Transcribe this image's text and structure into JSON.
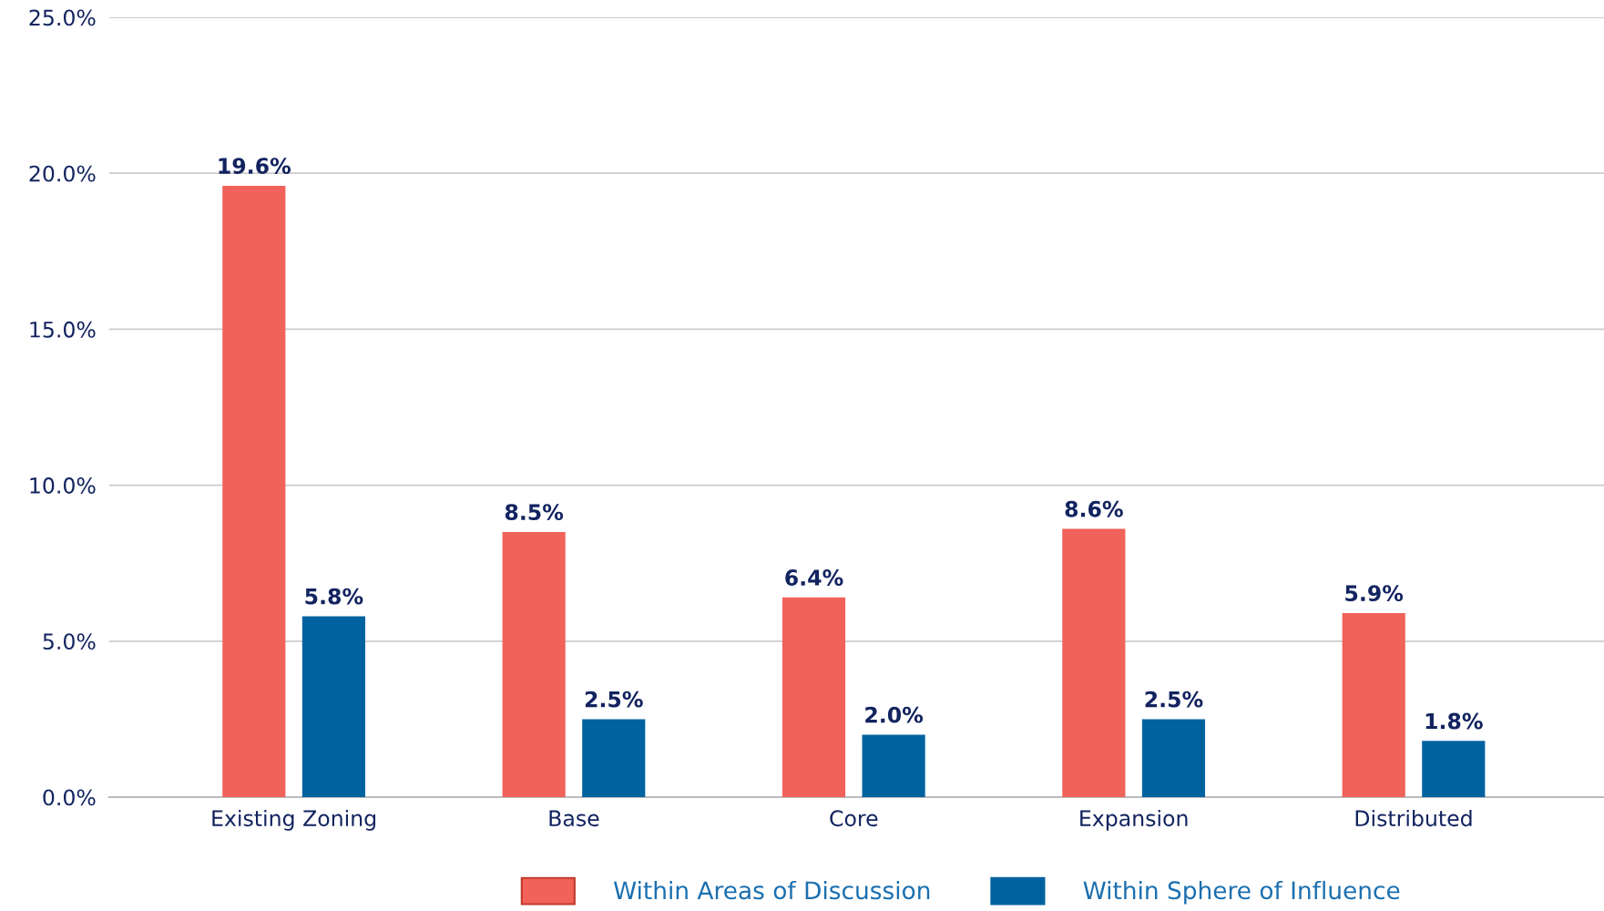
{
  "chart_data": {
    "type": "bar",
    "categories": [
      "Existing Zoning",
      "Base",
      "Core",
      "Expansion",
      "Distributed"
    ],
    "series": [
      {
        "name": "Within Areas of Discussion",
        "color": "#f0625a",
        "values": [
          19.6,
          8.5,
          6.4,
          8.6,
          5.9
        ],
        "value_labels": [
          "19.6%",
          "8.5%",
          "6.4%",
          "8.6%",
          "5.9%"
        ]
      },
      {
        "name": "Within Sphere of Influence",
        "color": "#00629f",
        "values": [
          5.8,
          2.5,
          2.0,
          2.5,
          1.8
        ],
        "value_labels": [
          "5.8%",
          "2.5%",
          "2.0%",
          "2.5%",
          "1.8%"
        ]
      }
    ],
    "ylim": [
      0,
      25
    ],
    "yticks": [
      {
        "value": 0,
        "label": "0.0%"
      },
      {
        "value": 5,
        "label": "5.0%"
      },
      {
        "value": 10,
        "label": "10.0%"
      },
      {
        "value": 15,
        "label": "15.0%"
      },
      {
        "value": 20,
        "label": "20.0%"
      },
      {
        "value": 25,
        "label": "25.0%"
      }
    ],
    "grid": "y",
    "legend": "bottom"
  }
}
